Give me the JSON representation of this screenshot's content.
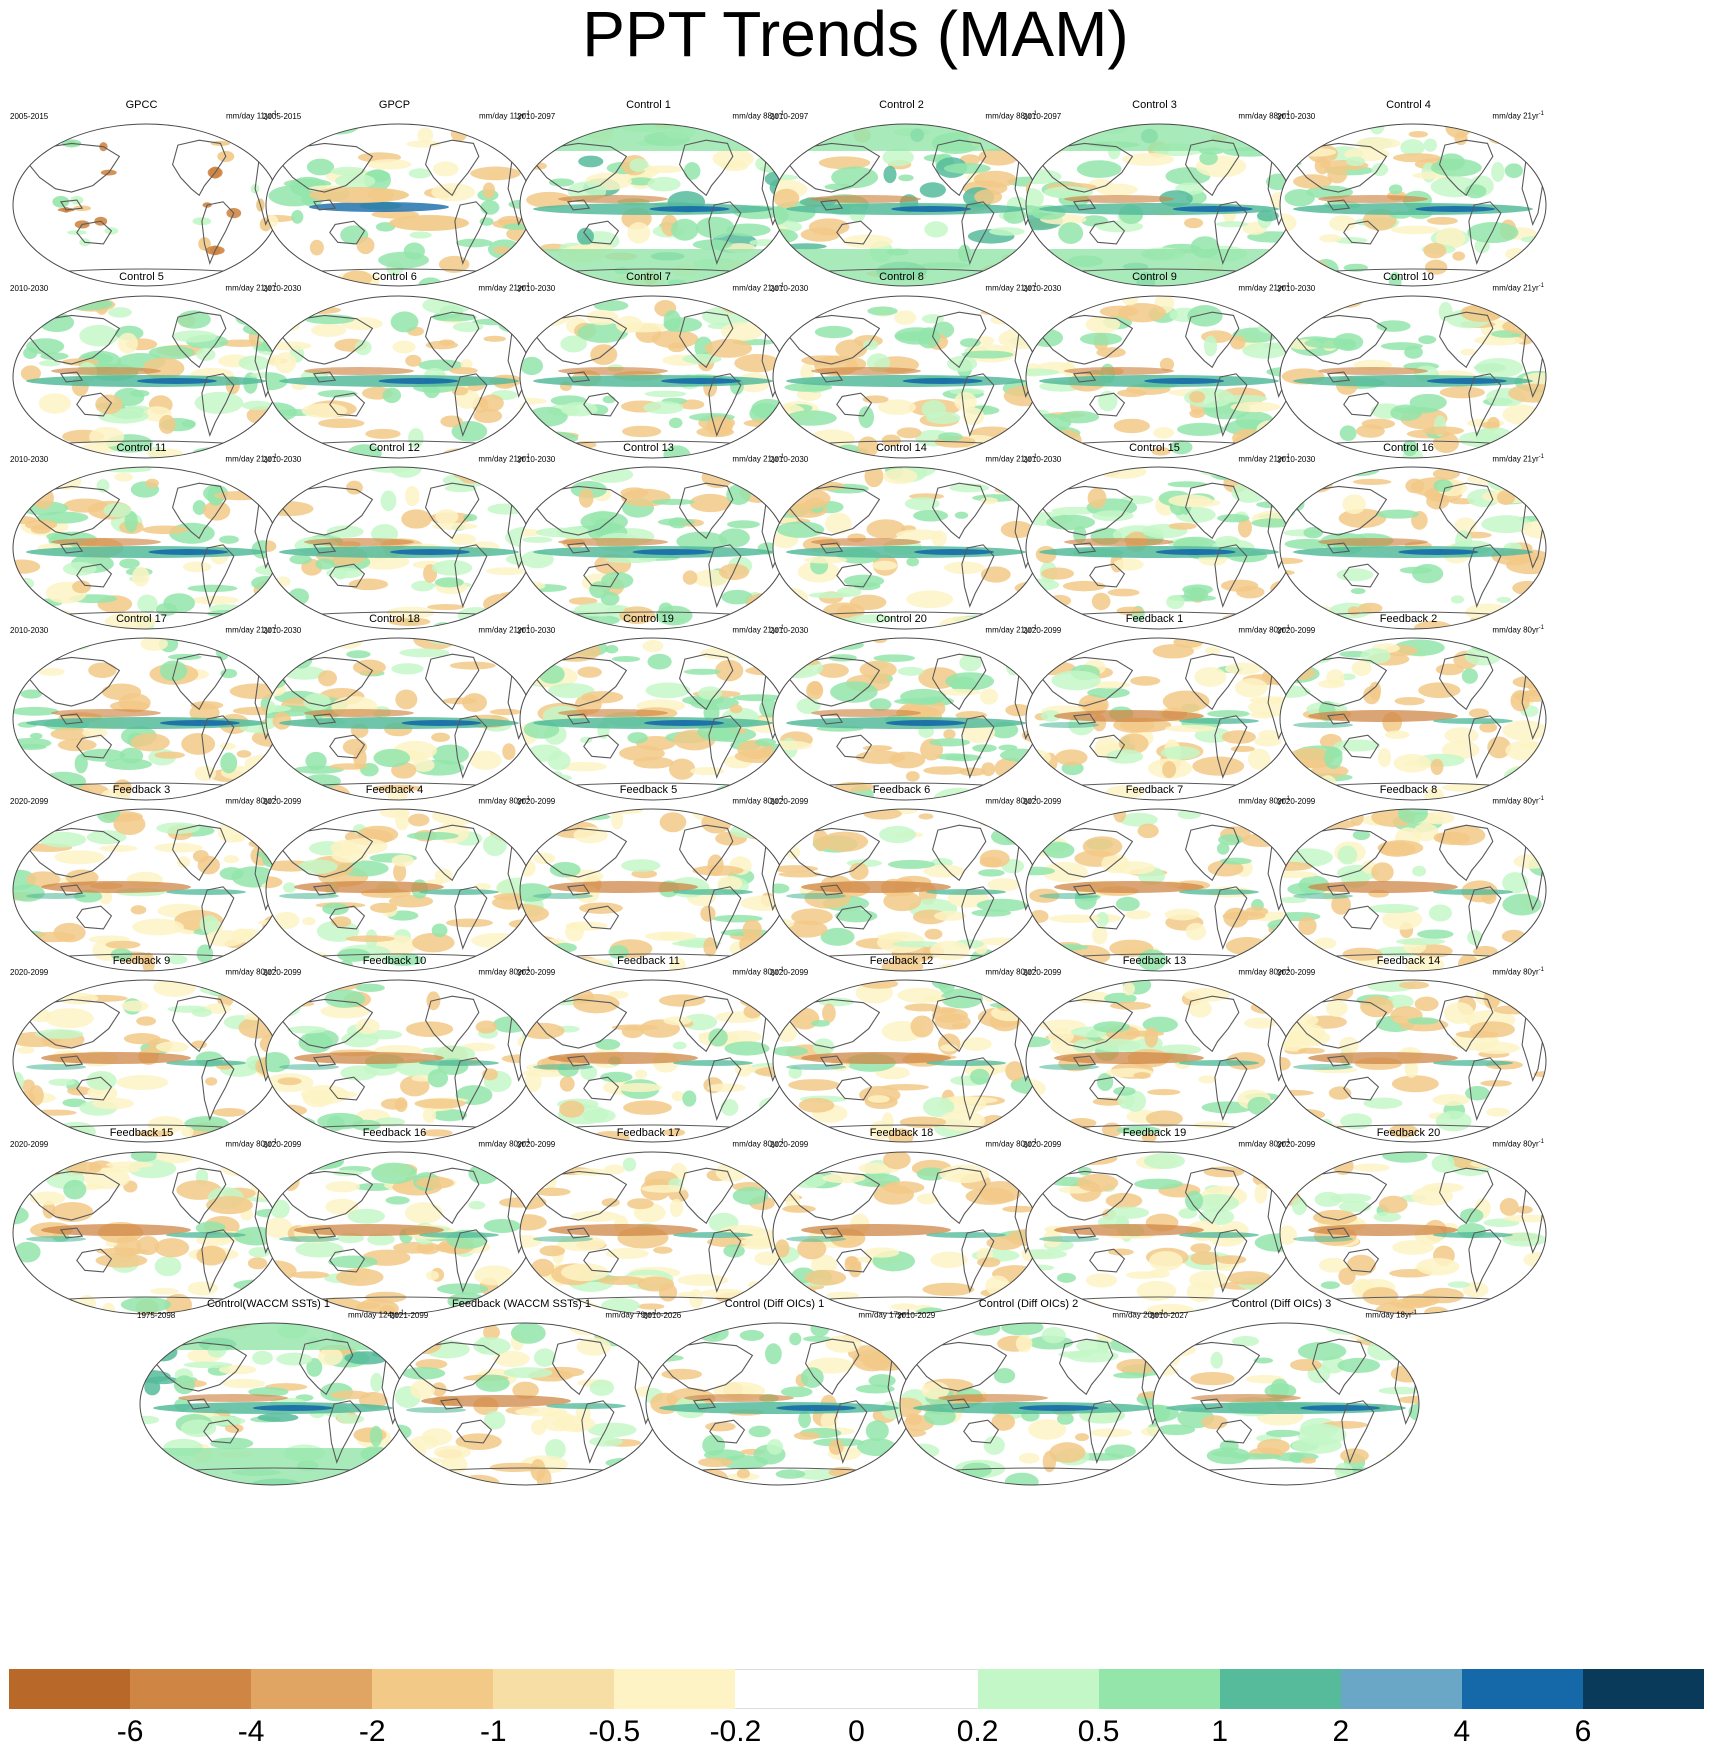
{
  "title": "PPT Trends (MAM)",
  "panels": [
    {
      "label": "GPCC",
      "period": "2005-2015",
      "units": "mm/day 11yr",
      "sup": "-1",
      "kind": "obs_land"
    },
    {
      "label": "GPCP",
      "period": "2005-2015",
      "units": "mm/day 11yr",
      "sup": "-1",
      "kind": "obs"
    },
    {
      "label": "Control 1",
      "period": "2010-2097",
      "units": "mm/day 88yr",
      "sup": "-1",
      "kind": "control_wet"
    },
    {
      "label": "Control 2",
      "period": "2010-2097",
      "units": "mm/day 88yr",
      "sup": "-1",
      "kind": "control_wet"
    },
    {
      "label": "Control 3",
      "period": "2010-2097",
      "units": "mm/day 88yr",
      "sup": "-1",
      "kind": "control_wet"
    },
    {
      "label": "Control 4",
      "period": "2010-2030",
      "units": "mm/day 21yr",
      "sup": "-1",
      "kind": "control"
    },
    {
      "label": "Control 5",
      "period": "2010-2030",
      "units": "mm/day 21yr",
      "sup": "-1",
      "kind": "control"
    },
    {
      "label": "Control 6",
      "period": "2010-2030",
      "units": "mm/day 21yr",
      "sup": "-1",
      "kind": "control"
    },
    {
      "label": "Control 7",
      "period": "2010-2030",
      "units": "mm/day 21yr",
      "sup": "-1",
      "kind": "control"
    },
    {
      "label": "Control 8",
      "period": "2010-2030",
      "units": "mm/day 21yr",
      "sup": "-1",
      "kind": "control"
    },
    {
      "label": "Control 9",
      "period": "2010-2030",
      "units": "mm/day 21yr",
      "sup": "-1",
      "kind": "control"
    },
    {
      "label": "Control 10",
      "period": "2010-2030",
      "units": "mm/day 21yr",
      "sup": "-1",
      "kind": "control"
    },
    {
      "label": "Control 11",
      "period": "2010-2030",
      "units": "mm/day 21yr",
      "sup": "-1",
      "kind": "control"
    },
    {
      "label": "Control 12",
      "period": "2010-2030",
      "units": "mm/day 21yr",
      "sup": "-1",
      "kind": "control"
    },
    {
      "label": "Control 13",
      "period": "2010-2030",
      "units": "mm/day 21yr",
      "sup": "-1",
      "kind": "control"
    },
    {
      "label": "Control 14",
      "period": "2010-2030",
      "units": "mm/day 21yr",
      "sup": "-1",
      "kind": "control"
    },
    {
      "label": "Control 15",
      "period": "2010-2030",
      "units": "mm/day 21yr",
      "sup": "-1",
      "kind": "control"
    },
    {
      "label": "Control 16",
      "period": "2010-2030",
      "units": "mm/day 21yr",
      "sup": "-1",
      "kind": "control"
    },
    {
      "label": "Control 17",
      "period": "2010-2030",
      "units": "mm/day 21yr",
      "sup": "-1",
      "kind": "control"
    },
    {
      "label": "Control 18",
      "period": "2010-2030",
      "units": "mm/day 21yr",
      "sup": "-1",
      "kind": "control"
    },
    {
      "label": "Control 19",
      "period": "2010-2030",
      "units": "mm/day 21yr",
      "sup": "-1",
      "kind": "control"
    },
    {
      "label": "Control 20",
      "period": "2010-2030",
      "units": "mm/day 21yr",
      "sup": "-1",
      "kind": "control"
    },
    {
      "label": "Feedback 1",
      "period": "2020-2099",
      "units": "mm/day 80yr",
      "sup": "-1",
      "kind": "feedback"
    },
    {
      "label": "Feedback 2",
      "period": "2020-2099",
      "units": "mm/day 80yr",
      "sup": "-1",
      "kind": "feedback"
    },
    {
      "label": "Feedback 3",
      "period": "2020-2099",
      "units": "mm/day 80yr",
      "sup": "-1",
      "kind": "feedback"
    },
    {
      "label": "Feedback 4",
      "period": "2020-2099",
      "units": "mm/day 80yr",
      "sup": "-1",
      "kind": "feedback"
    },
    {
      "label": "Feedback 5",
      "period": "2020-2099",
      "units": "mm/day 80yr",
      "sup": "-1",
      "kind": "feedback"
    },
    {
      "label": "Feedback 6",
      "period": "2020-2099",
      "units": "mm/day 80yr",
      "sup": "-1",
      "kind": "feedback"
    },
    {
      "label": "Feedback 7",
      "period": "2020-2099",
      "units": "mm/day 80yr",
      "sup": "-1",
      "kind": "feedback"
    },
    {
      "label": "Feedback 8",
      "period": "2020-2099",
      "units": "mm/day 80yr",
      "sup": "-1",
      "kind": "feedback"
    },
    {
      "label": "Feedback 9",
      "period": "2020-2099",
      "units": "mm/day 80yr",
      "sup": "-1",
      "kind": "feedback"
    },
    {
      "label": "Feedback 10",
      "period": "2020-2099",
      "units": "mm/day 80yr",
      "sup": "-1",
      "kind": "feedback"
    },
    {
      "label": "Feedback 11",
      "period": "2020-2099",
      "units": "mm/day 80yr",
      "sup": "-1",
      "kind": "feedback"
    },
    {
      "label": "Feedback 12",
      "period": "2020-2099",
      "units": "mm/day 80yr",
      "sup": "-1",
      "kind": "feedback"
    },
    {
      "label": "Feedback 13",
      "period": "2020-2099",
      "units": "mm/day 80yr",
      "sup": "-1",
      "kind": "feedback"
    },
    {
      "label": "Feedback 14",
      "period": "2020-2099",
      "units": "mm/day 80yr",
      "sup": "-1",
      "kind": "feedback"
    },
    {
      "label": "Feedback 15",
      "period": "2020-2099",
      "units": "mm/day 80yr",
      "sup": "-1",
      "kind": "feedback"
    },
    {
      "label": "Feedback 16",
      "period": "2020-2099",
      "units": "mm/day 80yr",
      "sup": "-1",
      "kind": "feedback"
    },
    {
      "label": "Feedback 17",
      "period": "2020-2099",
      "units": "mm/day 80yr",
      "sup": "-1",
      "kind": "feedback"
    },
    {
      "label": "Feedback 18",
      "period": "2020-2099",
      "units": "mm/day 80yr",
      "sup": "-1",
      "kind": "feedback"
    },
    {
      "label": "Feedback 19",
      "period": "2020-2099",
      "units": "mm/day 80yr",
      "sup": "-1",
      "kind": "feedback"
    },
    {
      "label": "Feedback 20",
      "period": "2020-2099",
      "units": "mm/day 80yr",
      "sup": "-1",
      "kind": "feedback"
    },
    {
      "label": "Control(WACCM SSTs) 1",
      "period": "1975-2098",
      "units": "mm/day 124yr",
      "sup": "-1",
      "kind": "control_wet"
    },
    {
      "label": "Feedback (WACCM SSTs) 1",
      "period": "2021-2099",
      "units": "mm/day 79yr",
      "sup": "-1",
      "kind": "feedback"
    },
    {
      "label": "Control (Diff OICs) 1",
      "period": "2010-2026",
      "units": "mm/day 17yr",
      "sup": "-1",
      "kind": "control"
    },
    {
      "label": "Control (Diff OICs) 2",
      "period": "2010-2029",
      "units": "mm/day 20yr",
      "sup": "-1",
      "kind": "control"
    },
    {
      "label": "Control (Diff OICs) 3",
      "period": "2010-2027",
      "units": "mm/day 18yr",
      "sup": "-1",
      "kind": "control"
    }
  ],
  "colorbar": {
    "levels": [
      "-6",
      "-4",
      "-2",
      "-1",
      "-0.5",
      "-0.2",
      "0",
      "0.2",
      "0.5",
      "1",
      "2",
      "4",
      "6"
    ],
    "colors": [
      "#b8692a",
      "#cf8645",
      "#e0a562",
      "#f2c987",
      "#f7dea4",
      "#fdf3c4",
      "#ffffff",
      "#ffffff",
      "#c4f7c8",
      "#93e5aa",
      "#55bb9b",
      "#6aa6c6",
      "#1569a8",
      "#093a5a"
    ]
  },
  "map_colors": {
    "dry_strong": "#cf8645",
    "dry": "#f2c987",
    "dry_light": "#fdf3c4",
    "wet_light": "#c4f7c8",
    "wet": "#93e5aa",
    "wet_mid": "#55bb9b",
    "wet_strong": "#1569a8",
    "coast": "#5a5a5a"
  }
}
